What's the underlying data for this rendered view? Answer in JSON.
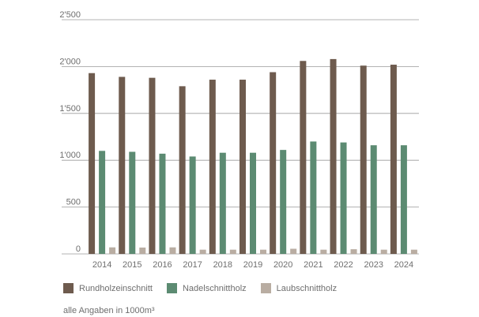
{
  "header": {
    "cut_text": ""
  },
  "chart_data": {
    "type": "bar",
    "categories": [
      "2014",
      "2015",
      "2016",
      "2017",
      "2018",
      "2019",
      "2020",
      "2021",
      "2022",
      "2023",
      "2024"
    ],
    "series": [
      {
        "name": "Rundholzeinschnitt",
        "color": "#6e5b4e",
        "values": [
          1930,
          1890,
          1880,
          1790,
          1860,
          1860,
          1940,
          2060,
          2080,
          2010,
          2020
        ]
      },
      {
        "name": "Nadelschnittholz",
        "color": "#5c8b72",
        "values": [
          1100,
          1090,
          1070,
          1040,
          1080,
          1080,
          1110,
          1200,
          1190,
          1160,
          1160
        ]
      },
      {
        "name": "Laubschnittholz",
        "color": "#b9ada2",
        "values": [
          70,
          68,
          70,
          45,
          45,
          45,
          55,
          45,
          50,
          45,
          45
        ]
      }
    ],
    "yticks": [
      "0",
      "500",
      "1'000",
      "1'500",
      "2'000",
      "2'500"
    ],
    "ytick_values": [
      0,
      500,
      1000,
      1500,
      2000,
      2500
    ],
    "ylim": [
      0,
      2500
    ],
    "grid": true,
    "legend_position": "bottom-left",
    "footnote": "alle Angaben in 1000m³"
  }
}
